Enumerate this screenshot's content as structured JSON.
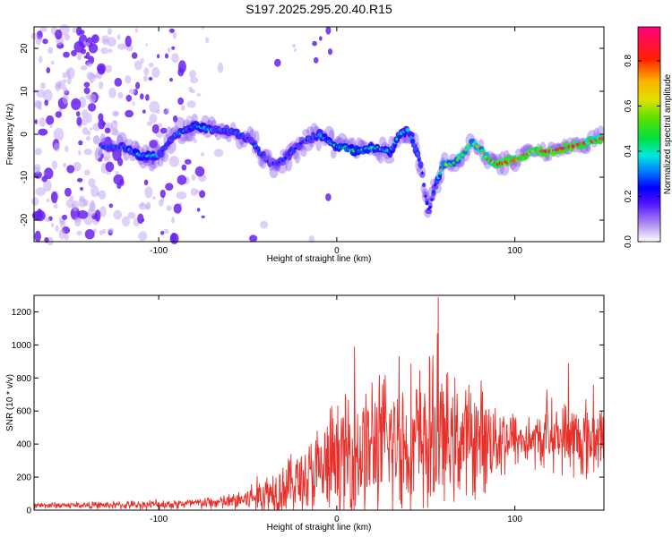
{
  "title": "S197.2025.295.20.40.R15",
  "colors": {
    "snr_line": "#e8302a",
    "axis": "#000000",
    "background": "#ffffff"
  },
  "chart_data": [
    {
      "type": "heatmap",
      "name": "spectrogram",
      "xlabel": "Height of straight line (km)",
      "ylabel": "Frequency (Hz)",
      "xlim": [
        -170,
        150
      ],
      "ylim": [
        -25,
        25
      ],
      "xticks": [
        -100,
        0,
        100
      ],
      "xtick_labels": [
        "-100",
        "0",
        "100"
      ],
      "yticks": [
        -20,
        -10,
        0,
        10,
        20
      ],
      "ytick_labels": [
        "-20",
        "-10",
        "0",
        "10",
        "20"
      ],
      "ridge": {
        "x": [
          -130,
          -120,
          -110,
          -100,
          -95,
          -90,
          -80,
          -70,
          -60,
          -50,
          -45,
          -40,
          -35,
          -30,
          -20,
          -10,
          0,
          5,
          10,
          20,
          30,
          35,
          40,
          45,
          48,
          50,
          52,
          55,
          60,
          65,
          70,
          75,
          80,
          85,
          90,
          100,
          110,
          120,
          130,
          140,
          148
        ],
        "y": [
          -3,
          -3,
          -5,
          -5,
          -2,
          0,
          2,
          1,
          1,
          -1,
          -3,
          -6,
          -7,
          -6,
          -2,
          0,
          -3,
          -3,
          -4,
          -3,
          -4,
          0,
          1,
          -4,
          -9,
          -15,
          -18,
          -12,
          -7,
          -7,
          -5,
          -2,
          -3,
          -6,
          -7,
          -6,
          -4,
          -4,
          -3,
          -2,
          -1
        ],
        "amp": [
          0.3,
          0.35,
          0.4,
          0.35,
          0.3,
          0.35,
          0.4,
          0.35,
          0.3,
          0.3,
          0.3,
          0.3,
          0.25,
          0.3,
          0.3,
          0.35,
          0.45,
          0.5,
          0.5,
          0.45,
          0.4,
          0.4,
          0.35,
          0.3,
          0.25,
          0.25,
          0.25,
          0.3,
          0.55,
          0.6,
          0.75,
          0.65,
          0.7,
          0.8,
          0.9,
          0.95,
          0.9,
          0.9,
          0.95,
          0.9,
          0.85
        ]
      },
      "colorbar": {
        "label": "Normalized spectral amplitude",
        "range": [
          0.0,
          0.95
        ],
        "ticks": [
          0.0,
          0.2,
          0.4,
          0.6,
          0.8
        ],
        "tick_labels": [
          "0.0",
          "0.2",
          "0.4",
          "0.6",
          "0.8"
        ]
      }
    },
    {
      "type": "line",
      "name": "snr",
      "xlabel": "Height of straight line (km)",
      "ylabel": "SNR (10 * v/v)",
      "xlim": [
        -170,
        150
      ],
      "ylim": [
        0,
        1300
      ],
      "xticks": [
        -100,
        0,
        100
      ],
      "xtick_labels": [
        "-100",
        "0",
        "100"
      ],
      "yticks": [
        0,
        200,
        400,
        600,
        800,
        1000,
        1200
      ],
      "ytick_labels": [
        "0",
        "200",
        "400",
        "600",
        "800",
        "1000",
        "1200"
      ],
      "envelope": {
        "x": [
          -170,
          -150,
          -120,
          -100,
          -80,
          -60,
          -50,
          -40,
          -30,
          -20,
          -10,
          0,
          10,
          20,
          30,
          40,
          50,
          57,
          60,
          70,
          80,
          90,
          100,
          110,
          115,
          120,
          125,
          130,
          135,
          140,
          150
        ],
        "base": [
          30,
          30,
          30,
          35,
          40,
          50,
          70,
          100,
          140,
          180,
          220,
          300,
          350,
          380,
          400,
          400,
          420,
          430,
          420,
          420,
          430,
          440,
          430,
          420,
          420,
          460,
          440,
          440,
          420,
          420,
          450
        ],
        "amp": [
          20,
          20,
          25,
          30,
          35,
          50,
          90,
          140,
          180,
          220,
          300,
          380,
          420,
          450,
          450,
          460,
          480,
          500,
          400,
          360,
          350,
          260,
          180,
          160,
          180,
          220,
          180,
          260,
          240,
          260,
          200
        ]
      },
      "peaks": [
        {
          "x": 57,
          "y": 1290
        },
        {
          "x": 56.5,
          "y": 1070
        },
        {
          "x": 10,
          "y": 990
        },
        {
          "x": 35,
          "y": 930
        },
        {
          "x": 130,
          "y": 890
        },
        {
          "x": 118,
          "y": 730
        },
        {
          "x": 144,
          "y": 760
        }
      ]
    }
  ]
}
